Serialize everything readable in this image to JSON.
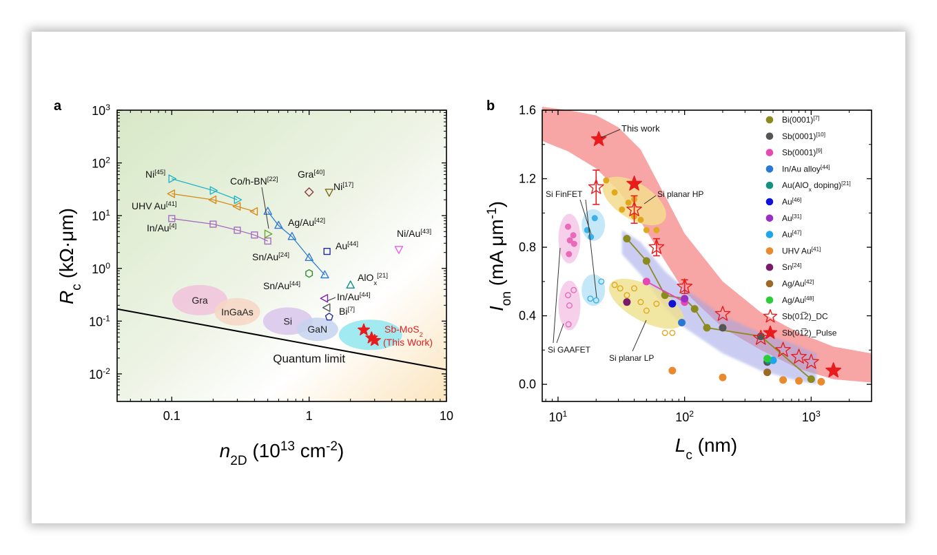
{
  "chart_data": [
    {
      "panel": "a",
      "type": "scatter",
      "x_scale": "log",
      "y_scale": "log",
      "xlim": [
        0.04,
        10
      ],
      "ylim": [
        0.003,
        1000
      ],
      "xlabel": {
        "main": "n",
        "sub": "2D",
        "rest": " (10",
        "sup": "13",
        "tail": " cm",
        "sup2": "-2",
        "close": ")"
      },
      "ylabel": {
        "main": "R",
        "sub": "c",
        "rest": " (kΩ·μm)"
      },
      "x_ticks": [
        {
          "v": 0.1,
          "label": "0.1"
        },
        {
          "v": 1,
          "label": "1"
        },
        {
          "v": 10,
          "label": "10"
        }
      ],
      "y_ticks": [
        {
          "v": 0.01,
          "base": "10",
          "exp": "-2"
        },
        {
          "v": 0.1,
          "base": "10",
          "exp": "-1"
        },
        {
          "v": 1,
          "base": "10",
          "exp": "0"
        },
        {
          "v": 10,
          "base": "10",
          "exp": "1"
        },
        {
          "v": 100,
          "base": "10",
          "exp": "2"
        },
        {
          "v": 1000,
          "base": "10",
          "exp": "3"
        }
      ],
      "quantum_limit": {
        "label": "Quantum limit",
        "points": [
          [
            0.04,
            0.17
          ],
          [
            10,
            0.012
          ]
        ]
      },
      "regions": [
        {
          "label": "Gra",
          "x": 0.16,
          "y": 0.25,
          "color": "#f1c2dc"
        },
        {
          "label": "InGaAs",
          "x": 0.3,
          "y": 0.15,
          "color": "#f7d6c4"
        },
        {
          "label": "Si",
          "x": 0.7,
          "y": 0.1,
          "color": "#d9c6ec"
        },
        {
          "label": "GaN",
          "x": 1.15,
          "y": 0.07,
          "color": "#c6d3ee"
        },
        {
          "label": "",
          "x": 2.8,
          "y": 0.055,
          "color": "#8fe6ee"
        }
      ],
      "series": [
        {
          "name": "Ni",
          "ref": "[45]",
          "marker": "tri-right",
          "color": "#22b5c6",
          "line": true,
          "points": [
            [
              0.1,
              50
            ],
            [
              0.2,
              30
            ],
            [
              0.3,
              20
            ]
          ]
        },
        {
          "name": "UHV Au",
          "ref": "[41]",
          "marker": "tri-left",
          "color": "#d78b1c",
          "line": true,
          "points": [
            [
              0.1,
              26
            ],
            [
              0.2,
              20
            ],
            [
              0.3,
              15
            ],
            [
              0.4,
              12
            ]
          ]
        },
        {
          "name": "In/Au",
          "ref": "[4]",
          "marker": "square",
          "color": "#a46bc0",
          "line": true,
          "points": [
            [
              0.1,
              8.8
            ],
            [
              0.2,
              6.9
            ],
            [
              0.3,
              5.3
            ],
            [
              0.4,
              4.3
            ],
            [
              0.5,
              3.3
            ]
          ]
        },
        {
          "name": "Co/h-BN",
          "ref": "[22]",
          "marker": "tri-right",
          "color": "#6da432",
          "line": false,
          "points": [
            [
              0.5,
              4.5
            ]
          ]
        },
        {
          "name": "Ag/Au",
          "ref": "[42]",
          "marker": "tri-up",
          "color": "#2f7bd4",
          "line": true,
          "points": [
            [
              0.5,
              12
            ],
            [
              0.6,
              6.5
            ],
            [
              0.75,
              4
            ],
            [
              1.0,
              1.6
            ],
            [
              1.3,
              0.75
            ]
          ]
        },
        {
          "name": "Gra",
          "ref": "[40]",
          "marker": "diamond",
          "color": "#8b3a3a",
          "line": false,
          "points": [
            [
              1.0,
              28
            ]
          ]
        },
        {
          "name": "Ni",
          "ref": "[17]",
          "marker": "tri-down",
          "color": "#7b6a1a",
          "line": false,
          "points": [
            [
              1.4,
              28
            ]
          ]
        },
        {
          "name": "Au",
          "ref": "[44]",
          "marker": "square",
          "color": "#22289a",
          "line": false,
          "points": [
            [
              1.35,
              2.1
            ]
          ]
        },
        {
          "name": "Ni/Au",
          "ref": "[43]",
          "marker": "tri-down",
          "color": "#e85ee8",
          "line": false,
          "points": [
            [
              4.5,
              2.3
            ]
          ]
        },
        {
          "name": "Sn/Au",
          "ref": "[24]",
          "marker": "hexagon",
          "color": "#2d8a2d",
          "line": false,
          "points": [
            [
              1.0,
              0.8
            ]
          ]
        },
        {
          "name": "AlO",
          "ref": "[21]",
          "marker": "tri-up",
          "color": "#108c86",
          "line": false,
          "points": [
            [
              2.0,
              0.48
            ]
          ]
        },
        {
          "name": "Sn/Au",
          "ref": "[44]",
          "marker": "tri-left",
          "color": "#8a1ab0",
          "line": false,
          "points": [
            [
              1.3,
              0.27
            ]
          ]
        },
        {
          "name": "In/Au",
          "ref": "[44]",
          "marker": "tri-left",
          "color": "#555555",
          "line": false,
          "points": [
            [
              1.35,
              0.18
            ]
          ]
        },
        {
          "name": "Bi",
          "ref": "[7]",
          "marker": "pentagon",
          "color": "#24289c",
          "line": false,
          "points": [
            [
              1.4,
              0.12
            ]
          ]
        },
        {
          "name": "Sb-MoS2",
          "marker": "star",
          "color": "#e81c1c",
          "line": false,
          "points": [
            [
              2.5,
              0.068
            ],
            [
              2.85,
              0.048
            ],
            [
              3.0,
              0.043
            ]
          ]
        }
      ],
      "labels": {
        "ni45": {
          "t": "Ni",
          "ref": "[45]"
        },
        "uhv41": {
          "t": "UHV Au",
          "ref": "[41]"
        },
        "inau4": {
          "t": "In/Au",
          "ref": "[4]"
        },
        "cohbn": {
          "t": "Co/h-BN",
          "ref": "[22]"
        },
        "agau42": {
          "t": "Ag/Au",
          "ref": "[42]"
        },
        "gra40": {
          "t": "Gra",
          "ref": "[40]"
        },
        "ni17": {
          "t": "Ni",
          "ref": "[17]"
        },
        "au44": {
          "t": "Au",
          "ref": "[44]"
        },
        "niau43": {
          "t": "Ni/Au",
          "ref": "[43]"
        },
        "snau24": {
          "t": "Sn/Au",
          "ref": "[24]"
        },
        "alox": {
          "t": "AlO",
          "sub": "x",
          "ref": "[21]"
        },
        "snau44": {
          "t": "Sn/Au",
          "ref": "[44]"
        },
        "inau44": {
          "t": "In/Au",
          "ref": "[44]"
        },
        "bi7": {
          "t": "Bi",
          "ref": "[7]"
        },
        "sbmos2": {
          "t": "Sb-MoS",
          "sub": "2"
        },
        "thiswork": {
          "t": "(This Work)"
        }
      }
    },
    {
      "panel": "b",
      "type": "scatter",
      "x_scale": "log",
      "y_scale": "linear",
      "xlim": [
        7.5,
        3000
      ],
      "ylim": [
        -0.1,
        1.6
      ],
      "xlabel": {
        "main": "L",
        "sub": "c",
        "rest": " (nm)"
      },
      "ylabel": {
        "main": "I",
        "sub": "on",
        "rest": " (mA μm",
        "sup": "-1",
        "close": ")"
      },
      "x_ticks": [
        {
          "v": 10,
          "base": "10",
          "exp": "1"
        },
        {
          "v": 100,
          "base": "10",
          "exp": "2"
        },
        {
          "v": 1000,
          "base": "10",
          "exp": "3"
        }
      ],
      "y_ticks": [
        {
          "v": 0.0,
          "label": "0.0"
        },
        {
          "v": 0.4,
          "label": "0.4"
        },
        {
          "v": 0.8,
          "label": "0.8"
        },
        {
          "v": 1.2,
          "label": "1.2"
        },
        {
          "v": 1.6,
          "label": "1.6"
        }
      ],
      "regions": [
        {
          "label": "Si FinFET",
          "color": "#bfe6f7"
        },
        {
          "label": "Si GAAFET",
          "color": "#f5c8e6"
        },
        {
          "label": "Si planar HP",
          "color": "#f3dc8c"
        },
        {
          "label": "Si planar LP",
          "color": "#efe08c"
        }
      ],
      "annotation": "This work",
      "series": [
        {
          "name": "Bi(0001)",
          "ref": "[7]",
          "color": "#8a8a1e",
          "line": true,
          "points": [
            [
              35,
              0.85
            ],
            [
              50,
              0.72
            ],
            [
              70,
              0.52
            ],
            [
              100,
              0.5
            ],
            [
              120,
              0.44
            ],
            [
              150,
              0.33
            ],
            [
              400,
              0.28
            ],
            [
              1000,
              0.03
            ]
          ]
        },
        {
          "name": "Sb(0001)",
          "ref": "[10]",
          "color": "#555555",
          "line": false,
          "points": [
            [
              200,
              0.33
            ],
            [
              400,
              0.28
            ],
            [
              450,
              0.13
            ]
          ]
        },
        {
          "name": "Sb(0001)",
          "ref": "[9]",
          "color": "#e64ab0",
          "line": true,
          "points": [
            [
              50,
              0.6
            ],
            [
              100,
              0.48
            ]
          ]
        },
        {
          "name": "In/Au alloy",
          "ref": "[44]",
          "color": "#2a78d4",
          "line": false,
          "points": [
            [
              95,
              0.36
            ]
          ]
        },
        {
          "name": "Au(AlOx doping)",
          "ref": "[21]",
          "color": "#149185",
          "line": false,
          "points": [
            [
              460,
              0.14
            ]
          ]
        },
        {
          "name": "Au",
          "ref": "[46]",
          "color": "#1212d4",
          "line": false,
          "points": [
            [
              80,
              0.47
            ]
          ]
        },
        {
          "name": "Au",
          "ref": "[31]",
          "color": "#9b2fc4",
          "line": false,
          "points": [
            [
              100,
              0.5
            ]
          ]
        },
        {
          "name": "Au",
          "ref": "[47]",
          "color": "#20a6e8",
          "line": false,
          "points": [
            [
              500,
              0.14
            ]
          ]
        },
        {
          "name": "UHV Au",
          "ref": "[41]",
          "color": "#e88a2e",
          "line": false,
          "points": [
            [
              80,
              0.08
            ],
            [
              200,
              0.04
            ],
            [
              600,
              0.025
            ],
            [
              800,
              0.02
            ],
            [
              1200,
              0.015
            ]
          ]
        },
        {
          "name": "Sn",
          "ref": "[24]",
          "color": "#7a1a6a",
          "line": false,
          "points": [
            [
              35,
              0.48
            ]
          ]
        },
        {
          "name": "Ag/Au",
          "ref": "[42]",
          "color": "#9b6a26",
          "line": false,
          "points": [
            [
              450,
              0.07
            ]
          ]
        },
        {
          "name": "Ag/Au",
          "ref": "[48]",
          "color": "#2ccc3a",
          "line": false,
          "points": [
            [
              450,
              0.15
            ]
          ]
        },
        {
          "name": "Sb(01̅2)_DC",
          "color": "#e81c1c",
          "hollow": true,
          "line": false,
          "points": [
            [
              20,
              1.15
            ],
            [
              40,
              1.02
            ],
            [
              60,
              0.8
            ],
            [
              100,
              0.57
            ],
            [
              200,
              0.41
            ],
            [
              400,
              0.27
            ],
            [
              600,
              0.2
            ],
            [
              800,
              0.16
            ],
            [
              1000,
              0.13
            ],
            [
              1500,
              0.08
            ]
          ]
        },
        {
          "name": "Sb(01̅2)_Pulse",
          "color": "#e81c1c",
          "hollow": false,
          "line": false,
          "points": [
            [
              21,
              1.43
            ],
            [
              40,
              1.17
            ],
            [
              1500,
              0.08
            ]
          ]
        }
      ],
      "legend": [
        {
          "t": "Bi(0001)",
          "ref": "[7]"
        },
        {
          "t": "Sb(0001)",
          "ref": "[10]"
        },
        {
          "t": "Sb(0001)",
          "ref": "[9]"
        },
        {
          "t": "In/Au alloy",
          "ref": "[44]"
        },
        {
          "t": "Au(AlO",
          "sub": "x",
          "t2": " doping)",
          "ref": "[21]"
        },
        {
          "t": "Au",
          "ref": "[46]"
        },
        {
          "t": "Au",
          "ref": "[31]"
        },
        {
          "t": "Au",
          "ref": "[47]"
        },
        {
          "t": "UHV Au",
          "ref": "[41]"
        },
        {
          "t": "Sn",
          "ref": "[24]"
        },
        {
          "t": "Ag/Au",
          "ref": "[42]"
        },
        {
          "t": "Ag/Au",
          "ref": "[48]"
        },
        {
          "t": "Sb(01̅2)_DC"
        },
        {
          "t": "Sb(01̅2)_Pulse"
        }
      ]
    }
  ]
}
